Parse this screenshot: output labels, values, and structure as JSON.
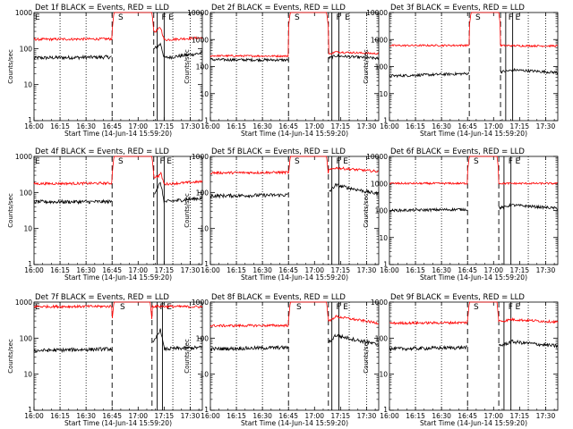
{
  "figure": {
    "ylabel": "Counts/sec",
    "xlabel": "Start Time (14-Jun-14 15:59:20)",
    "x_ticks": [
      "16:00",
      "16:15",
      "16:30",
      "16:45",
      "17:00",
      "17:15",
      "17:30"
    ]
  },
  "colors": {
    "events": "#000000",
    "lld": "#ff0000"
  },
  "chart_data": [
    {
      "type": "line",
      "title": "Det 1f BLACK = Events, RED = LLD",
      "xlabel": "Start Time (14-Jun-14 15:59:20)",
      "ylabel": "Counts/sec",
      "xlim": [
        "16:00",
        "17:37"
      ],
      "ylim": [
        1,
        1000
      ],
      "y_scale": "log",
      "y_ticks": [
        "1",
        "10",
        "100",
        "1000"
      ],
      "flags": [
        {
          "label": "E",
          "x": "16:00"
        },
        {
          "label": "S",
          "x": "16:48"
        },
        {
          "label": "F",
          "x": "17:13"
        },
        {
          "label": "E",
          "x": "17:17"
        }
      ],
      "dashed_lines": [
        "16:45",
        "17:09"
      ],
      "solid_lines": [
        "17:11",
        "17:15"
      ],
      "dotted_lines": [
        "16:15",
        "16:30",
        "17:20",
        "17:30"
      ],
      "events_level": 55,
      "lld_level": 180,
      "saa_interval": [
        "16:45",
        "17:09"
      ],
      "series": [
        {
          "name": "Events",
          "color": "#000000",
          "x": [
            "16:00",
            "16:44",
            "17:09",
            "17:12",
            "17:13",
            "17:15",
            "17:37"
          ],
          "y": [
            55,
            58,
            95,
            125,
            135,
            55,
            75
          ]
        },
        {
          "name": "LLD",
          "color": "#ff0000",
          "x": [
            "16:00",
            "16:44",
            "17:09",
            "17:12",
            "17:13",
            "17:15",
            "17:37"
          ],
          "y": [
            180,
            185,
            270,
            360,
            380,
            175,
            200
          ]
        }
      ]
    },
    {
      "type": "line",
      "title": "Det 2f BLACK = Events, RED = LLD",
      "xlabel": "Start Time (14-Jun-14 15:59:20)",
      "ylabel": "Counts/sec",
      "xlim": [
        "16:00",
        "17:37"
      ],
      "ylim": [
        1,
        10000
      ],
      "y_scale": "log",
      "y_ticks": [
        "1",
        "10",
        "100",
        "1000",
        "10000"
      ],
      "flags": [
        {
          "label": "S",
          "x": "16:48"
        },
        {
          "label": "F",
          "x": "17:12"
        },
        {
          "label": "E",
          "x": "17:17"
        }
      ],
      "dashed_lines": [
        "16:45",
        "17:08"
      ],
      "solid_lines": [
        "17:10",
        "17:14"
      ],
      "dotted_lines": [
        "16:15",
        "16:30",
        "17:20",
        "17:30"
      ],
      "events_level": 180,
      "lld_level": 250,
      "saa_interval": [
        "16:45",
        "17:08"
      ],
      "series": [
        {
          "name": "Events",
          "color": "#000000",
          "x": [
            "16:00",
            "16:44",
            "17:09",
            "17:12",
            "17:37"
          ],
          "y": [
            180,
            175,
            210,
            250,
            200
          ]
        },
        {
          "name": "LLD",
          "color": "#ff0000",
          "x": [
            "16:00",
            "16:44",
            "17:09",
            "17:12",
            "17:37"
          ],
          "y": [
            250,
            245,
            290,
            350,
            300
          ]
        }
      ]
    },
    {
      "type": "line",
      "title": "Det 3f BLACK = Events, RED = LLD",
      "xlabel": "Start Time (14-Jun-14 15:59:20)",
      "ylabel": "Counts/sec",
      "xlim": [
        "16:00",
        "17:37"
      ],
      "ylim": [
        1,
        10000
      ],
      "y_scale": "log",
      "y_ticks": [
        "1",
        "10",
        "100",
        "1000",
        "10000"
      ],
      "flags": [
        {
          "label": "S",
          "x": "16:49"
        },
        {
          "label": "F",
          "x": "17:08"
        },
        {
          "label": "E",
          "x": "17:12"
        }
      ],
      "dashed_lines": [
        "16:46",
        "17:04"
      ],
      "solid_lines": [
        "17:07",
        "17:11"
      ],
      "dotted_lines": [
        "16:15",
        "16:30",
        "17:20",
        "17:30"
      ],
      "events_level": 45,
      "lld_level": 600,
      "saa_interval": [
        "16:46",
        "17:04"
      ],
      "series": [
        {
          "name": "Events",
          "color": "#000000",
          "x": [
            "16:00",
            "16:45",
            "17:05",
            "17:12",
            "17:37"
          ],
          "y": [
            45,
            55,
            65,
            75,
            60
          ]
        },
        {
          "name": "LLD",
          "color": "#ff0000",
          "x": [
            "16:00",
            "16:45",
            "17:05",
            "17:12",
            "17:37"
          ],
          "y": [
            600,
            610,
            600,
            590,
            580
          ]
        }
      ]
    },
    {
      "type": "line",
      "title": "Det 4f BLACK = Events, RED = LLD",
      "xlabel": "Start Time (14-Jun-14 15:59:20)",
      "ylabel": "Counts/sec",
      "xlim": [
        "16:00",
        "17:37"
      ],
      "ylim": [
        1,
        1000
      ],
      "y_scale": "log",
      "y_ticks": [
        "1",
        "10",
        "100",
        "1000"
      ],
      "flags": [
        {
          "label": "E",
          "x": "16:00"
        },
        {
          "label": "S",
          "x": "16:48"
        },
        {
          "label": "F",
          "x": "17:12"
        },
        {
          "label": "E",
          "x": "17:16"
        }
      ],
      "dashed_lines": [
        "16:45",
        "17:09"
      ],
      "solid_lines": [
        "17:11",
        "17:15"
      ],
      "dotted_lines": [
        "16:15",
        "16:30",
        "17:20",
        "17:30"
      ],
      "events_level": 55,
      "lld_level": 175,
      "saa_interval": [
        "16:45",
        "17:09"
      ],
      "series": [
        {
          "name": "Events",
          "color": "#000000",
          "x": [
            "16:00",
            "16:44",
            "17:09",
            "17:12",
            "17:13",
            "17:15",
            "17:37"
          ],
          "y": [
            55,
            55,
            90,
            160,
            180,
            55,
            70
          ]
        },
        {
          "name": "LLD",
          "color": "#ff0000",
          "x": [
            "16:00",
            "16:44",
            "17:09",
            "17:12",
            "17:13",
            "17:15",
            "17:37"
          ],
          "y": [
            175,
            180,
            260,
            290,
            350,
            170,
            200
          ]
        }
      ]
    },
    {
      "type": "line",
      "title": "Det 5f BLACK = Events, RED = LLD",
      "xlabel": "Start Time (14-Jun-14 15:59:20)",
      "ylabel": "Counts/sec",
      "xlim": [
        "16:00",
        "17:37"
      ],
      "ylim": [
        1,
        1000
      ],
      "y_scale": "log",
      "y_ticks": [
        "1",
        "10",
        "100",
        "1000"
      ],
      "flags": [
        {
          "label": "S",
          "x": "16:48"
        },
        {
          "label": "F",
          "x": "17:12"
        },
        {
          "label": "E",
          "x": "17:16"
        }
      ],
      "dashed_lines": [
        "16:45",
        "17:08"
      ],
      "solid_lines": [
        "17:10",
        "17:14"
      ],
      "dotted_lines": [
        "16:15",
        "16:30",
        "17:20",
        "17:30"
      ],
      "events_level": 80,
      "lld_level": 350,
      "saa_interval": [
        "16:45",
        "17:08"
      ],
      "series": [
        {
          "name": "Events",
          "color": "#000000",
          "x": [
            "16:00",
            "16:44",
            "17:09",
            "17:12",
            "17:37"
          ],
          "y": [
            80,
            85,
            110,
            160,
            90
          ]
        },
        {
          "name": "LLD",
          "color": "#ff0000",
          "x": [
            "16:00",
            "16:44",
            "17:09",
            "17:12",
            "17:37"
          ],
          "y": [
            350,
            360,
            420,
            480,
            380
          ]
        }
      ]
    },
    {
      "type": "line",
      "title": "Det 6f BLACK = Events, RED = LLD",
      "xlabel": "Start Time (14-Jun-14 15:59:20)",
      "ylabel": "Counts/sec",
      "xlim": [
        "16:00",
        "17:37"
      ],
      "ylim": [
        1,
        10000
      ],
      "y_scale": "log",
      "y_ticks": [
        "1",
        "10",
        "100",
        "1000",
        "10000"
      ],
      "flags": [
        {
          "label": "S",
          "x": "16:48"
        },
        {
          "label": "F",
          "x": "17:08"
        },
        {
          "label": "E",
          "x": "17:12"
        }
      ],
      "dashed_lines": [
        "16:45",
        "17:03"
      ],
      "solid_lines": [
        "17:06",
        "17:10"
      ],
      "dotted_lines": [
        "16:15",
        "16:30",
        "17:20",
        "17:30"
      ],
      "events_level": 100,
      "lld_level": 1000,
      "saa_interval": [
        "16:45",
        "17:03"
      ],
      "series": [
        {
          "name": "Events",
          "color": "#000000",
          "x": [
            "16:00",
            "16:44",
            "17:06",
            "17:10",
            "17:37"
          ],
          "y": [
            100,
            110,
            130,
            160,
            120
          ]
        },
        {
          "name": "LLD",
          "color": "#ff0000",
          "x": [
            "16:00",
            "16:44",
            "17:06",
            "17:10",
            "17:37"
          ],
          "y": [
            1000,
            1000,
            1000,
            1000,
            1000
          ]
        }
      ]
    },
    {
      "type": "line",
      "title": "Det 7f BLACK = Events, RED = LLD",
      "xlabel": "Start Time (14-Jun-14 15:59:20)",
      "ylabel": "Counts/sec",
      "xlim": [
        "16:00",
        "17:37"
      ],
      "ylim": [
        1,
        1000
      ],
      "y_scale": "log",
      "y_ticks": [
        "1",
        "10",
        "100",
        "1000"
      ],
      "flags": [
        {
          "label": "E",
          "x": "16:00"
        },
        {
          "label": "S",
          "x": "16:49"
        },
        {
          "label": "F",
          "x": "17:12"
        },
        {
          "label": "E",
          "x": "17:16"
        }
      ],
      "dashed_lines": [
        "16:45",
        "17:08"
      ],
      "solid_lines": [
        "17:11",
        "17:14"
      ],
      "dotted_lines": [
        "16:15",
        "16:30",
        "17:20",
        "17:30"
      ],
      "events_level": 45,
      "lld_level": 750,
      "saa_interval": [
        "16:45",
        "17:08"
      ],
      "series": [
        {
          "name": "Events",
          "color": "#000000",
          "x": [
            "16:00",
            "16:44",
            "17:09",
            "17:12",
            "17:13",
            "17:15",
            "17:37"
          ],
          "y": [
            45,
            50,
            75,
            150,
            170,
            50,
            55
          ]
        },
        {
          "name": "LLD",
          "color": "#ff0000",
          "x": [
            "16:00",
            "16:44",
            "17:09",
            "17:12",
            "17:37"
          ],
          "y": [
            750,
            760,
            760,
            760,
            740
          ]
        }
      ]
    },
    {
      "type": "line",
      "title": "Det 8f BLACK = Events, RED = LLD",
      "xlabel": "Start Time (14-Jun-14 15:59:20)",
      "ylabel": "Counts/sec",
      "xlim": [
        "16:00",
        "17:37"
      ],
      "ylim": [
        1,
        1000
      ],
      "y_scale": "log",
      "y_ticks": [
        "1",
        "10",
        "100",
        "1000"
      ],
      "flags": [
        {
          "label": "S",
          "x": "16:49"
        },
        {
          "label": "F",
          "x": "17:12"
        },
        {
          "label": "E",
          "x": "17:16"
        }
      ],
      "dashed_lines": [
        "16:45",
        "17:08"
      ],
      "solid_lines": [
        "17:10",
        "17:14"
      ],
      "dotted_lines": [
        "16:15",
        "16:30",
        "17:20",
        "17:30"
      ],
      "events_level": 50,
      "lld_level": 220,
      "saa_interval": [
        "16:45",
        "17:08"
      ],
      "series": [
        {
          "name": "Events",
          "color": "#000000",
          "x": [
            "16:00",
            "16:44",
            "17:09",
            "17:12",
            "17:37"
          ],
          "y": [
            50,
            55,
            80,
            120,
            65
          ]
        },
        {
          "name": "LLD",
          "color": "#ff0000",
          "x": [
            "16:00",
            "16:44",
            "17:09",
            "17:12",
            "17:37"
          ],
          "y": [
            220,
            225,
            300,
            400,
            260
          ]
        }
      ]
    },
    {
      "type": "line",
      "title": "Det 9f BLACK = Events, RED = LLD",
      "xlabel": "Start Time (14-Jun-14 15:59:20)",
      "ylabel": "Counts/sec",
      "xlim": [
        "16:00",
        "17:37"
      ],
      "ylim": [
        1,
        1000
      ],
      "y_scale": "log",
      "y_ticks": [
        "1",
        "10",
        "100",
        "1000"
      ],
      "flags": [
        {
          "label": "S",
          "x": "16:48"
        },
        {
          "label": "F",
          "x": "17:08"
        },
        {
          "label": "E",
          "x": "17:12"
        }
      ],
      "dashed_lines": [
        "16:45",
        "17:03"
      ],
      "solid_lines": [
        "17:06",
        "17:10"
      ],
      "dotted_lines": [
        "16:15",
        "16:30",
        "17:20",
        "17:30"
      ],
      "events_level": 50,
      "lld_level": 260,
      "saa_interval": [
        "16:45",
        "17:03"
      ],
      "series": [
        {
          "name": "Events",
          "color": "#000000",
          "x": [
            "16:00",
            "16:44",
            "17:06",
            "17:10",
            "17:37"
          ],
          "y": [
            50,
            55,
            65,
            80,
            60
          ]
        },
        {
          "name": "LLD",
          "color": "#ff0000",
          "x": [
            "16:00",
            "16:44",
            "17:06",
            "17:10",
            "17:37"
          ],
          "y": [
            260,
            270,
            300,
            330,
            280
          ]
        }
      ]
    }
  ]
}
